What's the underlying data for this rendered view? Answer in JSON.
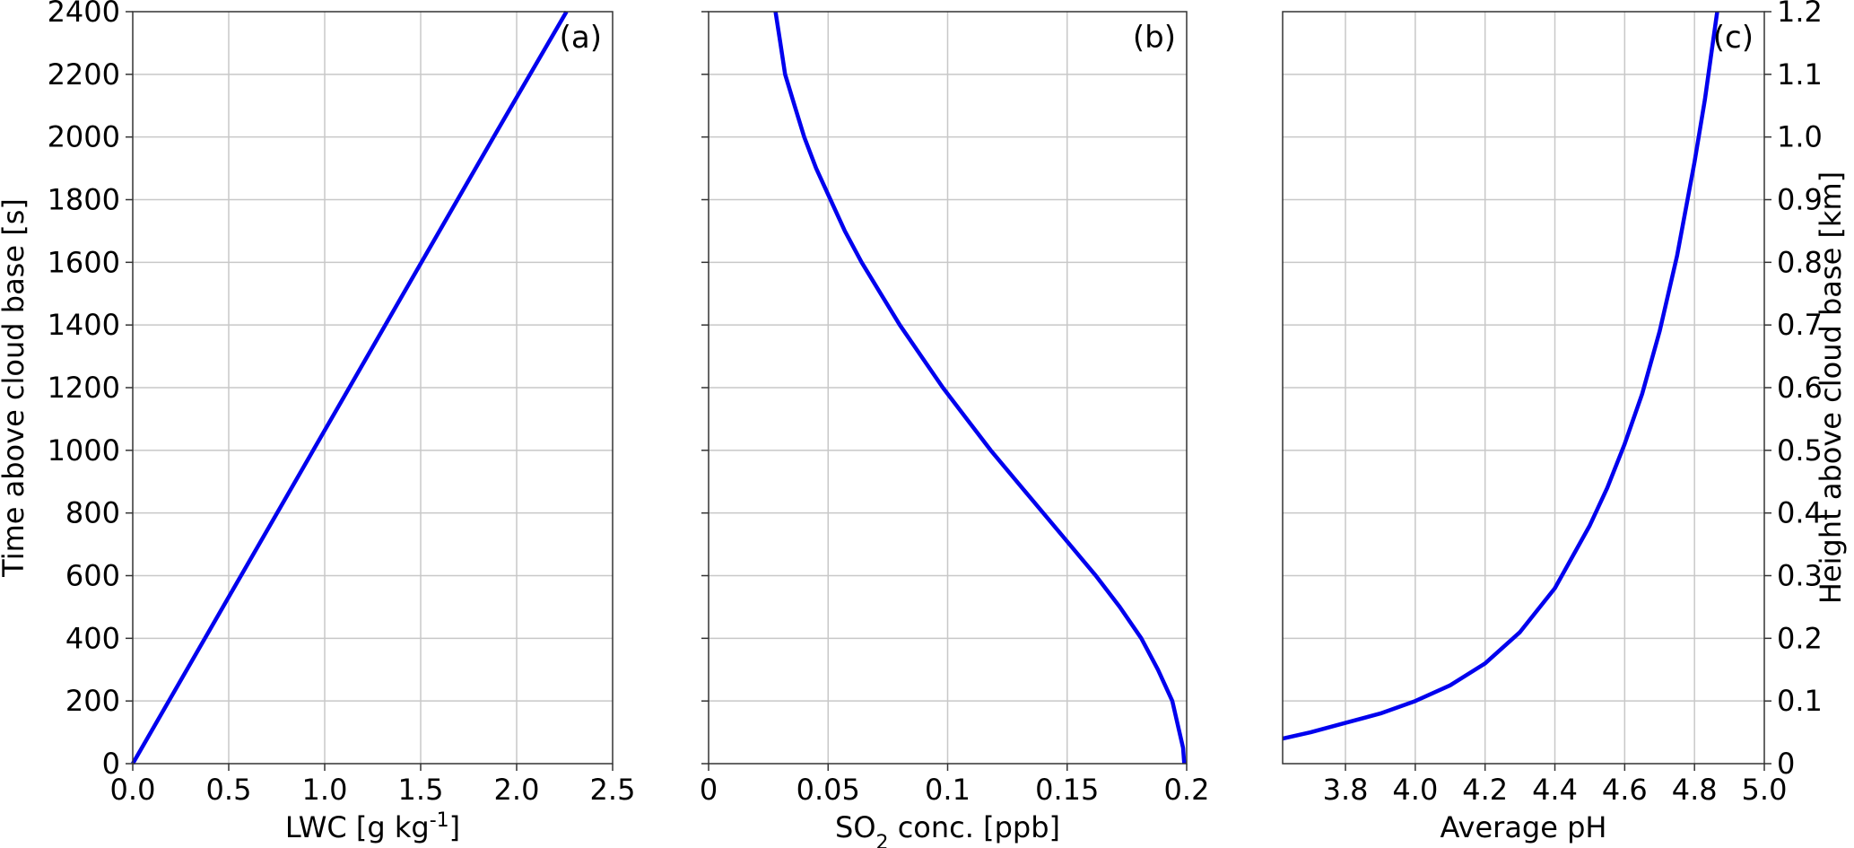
{
  "chart_data": [
    {
      "type": "line",
      "panel_label": "(a)",
      "xlabel_main": "LWC [g kg",
      "xlabel_sup": "-1",
      "xlabel_end": "]",
      "ylabel": "Time above cloud base [s]",
      "xlim": [
        0,
        2.5
      ],
      "ylim": [
        0,
        2400
      ],
      "xticks": [
        {
          "v": 0,
          "label": "0.0"
        },
        {
          "v": 0.5,
          "label": "0.5"
        },
        {
          "v": 1.0,
          "label": "1.0"
        },
        {
          "v": 1.5,
          "label": "1.5"
        },
        {
          "v": 2.0,
          "label": "2.0"
        },
        {
          "v": 2.5,
          "label": "2.5"
        }
      ],
      "yticks": [
        {
          "v": 0,
          "label": "0"
        },
        {
          "v": 200,
          "label": "200"
        },
        {
          "v": 400,
          "label": "400"
        },
        {
          "v": 600,
          "label": "600"
        },
        {
          "v": 800,
          "label": "800"
        },
        {
          "v": 1000,
          "label": "1000"
        },
        {
          "v": 1200,
          "label": "1200"
        },
        {
          "v": 1400,
          "label": "1400"
        },
        {
          "v": 1600,
          "label": "1600"
        },
        {
          "v": 1800,
          "label": "1800"
        },
        {
          "v": 2000,
          "label": "2000"
        },
        {
          "v": 2200,
          "label": "2200"
        },
        {
          "v": 2400,
          "label": "2400"
        }
      ],
      "grid": true,
      "series": [
        {
          "color": "#0000ee",
          "points": [
            [
              0,
              0
            ],
            [
              0.47,
              500
            ],
            [
              0.94,
              1000
            ],
            [
              1.41,
              1500
            ],
            [
              1.88,
              2000
            ],
            [
              2.26,
              2400
            ]
          ]
        }
      ]
    },
    {
      "type": "line",
      "panel_label": "(b)",
      "xlabel_main": "SO",
      "xlabel_sub": "2",
      "xlabel_end": " conc. [ppb]",
      "xlim": [
        0,
        0.2
      ],
      "ylim": [
        0,
        2400
      ],
      "xticks": [
        {
          "v": 0,
          "label": "0"
        },
        {
          "v": 0.05,
          "label": "0.05"
        },
        {
          "v": 0.1,
          "label": "0.1"
        },
        {
          "v": 0.15,
          "label": "0.15"
        },
        {
          "v": 0.2,
          "label": "0.2"
        }
      ],
      "yticks": [
        0,
        200,
        400,
        600,
        800,
        1000,
        1200,
        1400,
        1600,
        1800,
        2000,
        2200,
        2400
      ],
      "grid": true,
      "series": [
        {
          "color": "#0000ee",
          "points": [
            [
              0.199,
              0
            ],
            [
              0.1985,
              50
            ],
            [
              0.197,
              100
            ],
            [
              0.194,
              200
            ],
            [
              0.188,
              300
            ],
            [
              0.181,
              400
            ],
            [
              0.172,
              500
            ],
            [
              0.162,
              600
            ],
            [
              0.151,
              700
            ],
            [
              0.14,
              800
            ],
            [
              0.129,
              900
            ],
            [
              0.118,
              1000
            ],
            [
              0.108,
              1100
            ],
            [
              0.098,
              1200
            ],
            [
              0.089,
              1300
            ],
            [
              0.08,
              1400
            ],
            [
              0.072,
              1500
            ],
            [
              0.064,
              1600
            ],
            [
              0.057,
              1700
            ],
            [
              0.051,
              1800
            ],
            [
              0.045,
              1900
            ],
            [
              0.04,
              2000
            ],
            [
              0.036,
              2100
            ],
            [
              0.032,
              2200
            ],
            [
              0.03,
              2300
            ],
            [
              0.028,
              2400
            ]
          ]
        }
      ]
    },
    {
      "type": "line",
      "panel_label": "(c)",
      "xlabel": "Average pH",
      "ylabel_right": "Height above cloud base [km]",
      "xlim": [
        3.62,
        5.0
      ],
      "ylim": [
        0,
        1.2
      ],
      "xticks": [
        {
          "v": 3.8,
          "label": "3.8"
        },
        {
          "v": 4.0,
          "label": "4.0"
        },
        {
          "v": 4.2,
          "label": "4.2"
        },
        {
          "v": 4.4,
          "label": "4.4"
        },
        {
          "v": 4.6,
          "label": "4.6"
        },
        {
          "v": 4.8,
          "label": "4.8"
        },
        {
          "v": 5.0,
          "label": "5.0"
        }
      ],
      "yticks_right": [
        {
          "v": 0,
          "label": "0"
        },
        {
          "v": 0.1,
          "label": "0.1"
        },
        {
          "v": 0.2,
          "label": "0.2"
        },
        {
          "v": 0.3,
          "label": "0.3"
        },
        {
          "v": 0.4,
          "label": "0.4"
        },
        {
          "v": 0.5,
          "label": "0.5"
        },
        {
          "v": 0.6,
          "label": "0.6"
        },
        {
          "v": 0.7,
          "label": "0.7"
        },
        {
          "v": 0.8,
          "label": "0.8"
        },
        {
          "v": 0.9,
          "label": "0.9"
        },
        {
          "v": 1.0,
          "label": "1.0"
        },
        {
          "v": 1.1,
          "label": "1.1"
        },
        {
          "v": 1.2,
          "label": "1.2"
        }
      ],
      "grid": true,
      "series": [
        {
          "color": "#0000ee",
          "points": [
            [
              3.62,
              0.04
            ],
            [
              3.7,
              0.05
            ],
            [
              3.8,
              0.065
            ],
            [
              3.9,
              0.08
            ],
            [
              4.0,
              0.1
            ],
            [
              4.1,
              0.125
            ],
            [
              4.2,
              0.16
            ],
            [
              4.3,
              0.21
            ],
            [
              4.4,
              0.28
            ],
            [
              4.45,
              0.33
            ],
            [
              4.5,
              0.38
            ],
            [
              4.55,
              0.44
            ],
            [
              4.6,
              0.51
            ],
            [
              4.65,
              0.59
            ],
            [
              4.7,
              0.69
            ],
            [
              4.75,
              0.81
            ],
            [
              4.8,
              0.96
            ],
            [
              4.83,
              1.06
            ],
            [
              4.85,
              1.14
            ],
            [
              4.865,
              1.2
            ]
          ]
        }
      ]
    }
  ]
}
